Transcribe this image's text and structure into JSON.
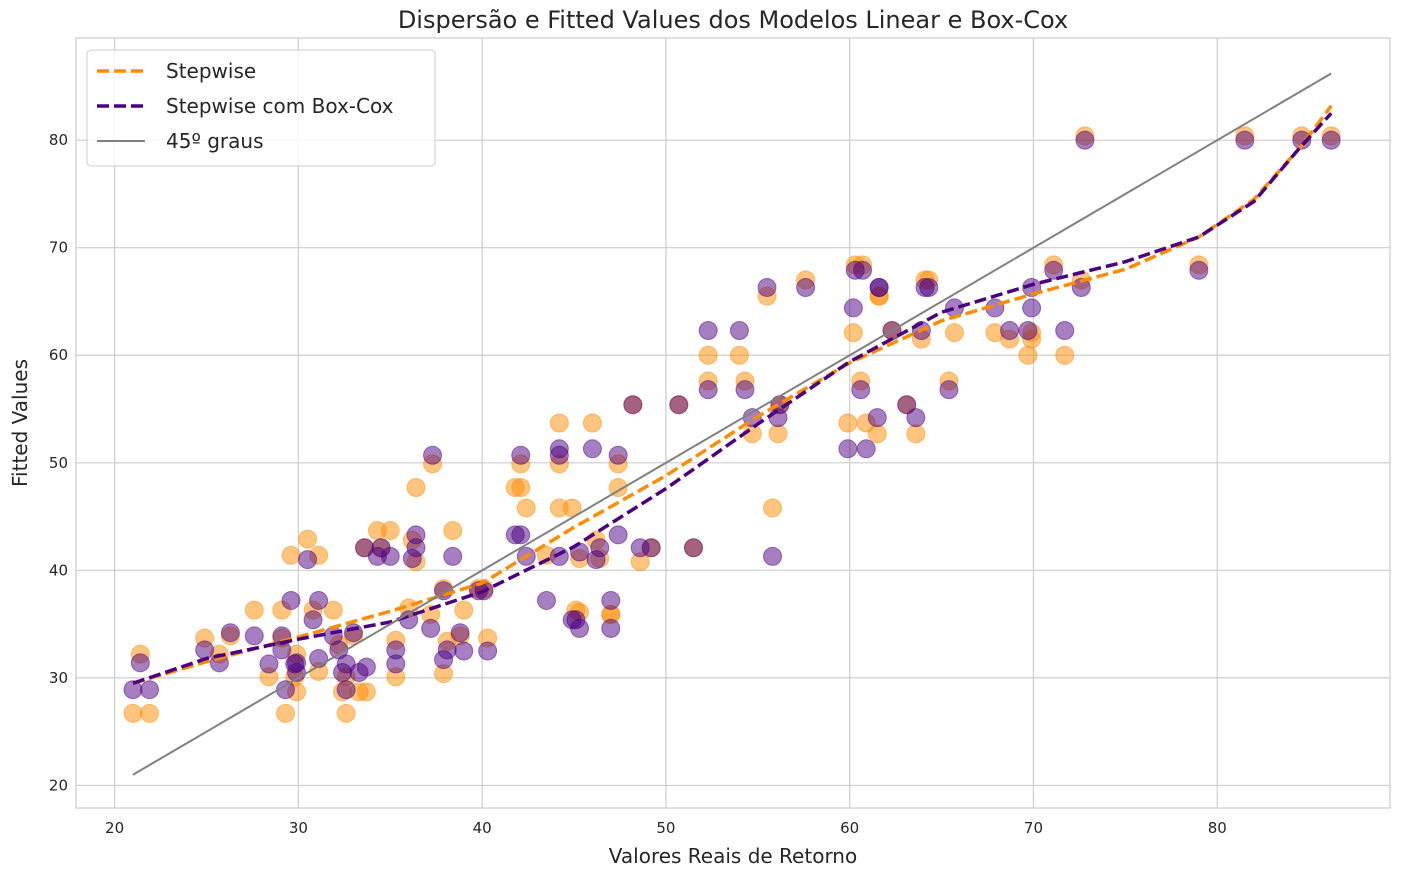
{
  "chart_data": {
    "type": "scatter",
    "title": "Dispersão e Fitted Values dos Modelos Linear e Box-Cox",
    "xlabel": "Valores Reais de Retorno",
    "ylabel": "Fitted Values",
    "xlim": [
      17.9,
      89.4
    ],
    "ylim": [
      17.9,
      89.5
    ],
    "xticks": [
      20,
      30,
      40,
      50,
      60,
      70,
      80
    ],
    "yticks": [
      20,
      30,
      40,
      50,
      60,
      70,
      80
    ],
    "grid": true,
    "legend_position": "top-left",
    "colors": {
      "stepwise": "#ff8c00",
      "boxcox": "#4b0082",
      "reference": "#808080"
    },
    "points": {
      "x": [
        21.0,
        21.4,
        21.9,
        24.9,
        25.7,
        26.3,
        27.6,
        28.4,
        29.1,
        29.1,
        29.3,
        29.6,
        29.8,
        29.9,
        29.9,
        30.5,
        30.8,
        31.1,
        31.1,
        31.9,
        32.2,
        32.4,
        32.6,
        32.6,
        33.0,
        33.3,
        33.6,
        33.7,
        34.3,
        34.5,
        35.0,
        35.3,
        35.3,
        36.0,
        36.2,
        36.4,
        36.4,
        37.2,
        37.3,
        37.9,
        37.9,
        38.1,
        38.4,
        38.8,
        39.0,
        39.8,
        40.1,
        40.3,
        41.8,
        42.1,
        42.1,
        42.4,
        43.5,
        44.2,
        44.2,
        44.2,
        44.9,
        45.1,
        45.3,
        45.3,
        46.0,
        46.2,
        46.4,
        47.0,
        47.0,
        47.4,
        47.4,
        48.2,
        48.6,
        49.2,
        50.7,
        51.5,
        52.3,
        52.3,
        54.0,
        54.3,
        54.7,
        55.5,
        55.8,
        56.1,
        56.2,
        57.6,
        59.9,
        60.2,
        60.3,
        60.6,
        60.7,
        60.9,
        61.5,
        61.6,
        61.6,
        62.3,
        63.1,
        63.6,
        63.9,
        64.1,
        64.3,
        65.4,
        65.7,
        67.9,
        68.7,
        69.7,
        69.9,
        69.9,
        71.1,
        71.7,
        72.6,
        72.8,
        79.0,
        81.5,
        84.6,
        86.2
      ],
      "stepwise": [
        26.7,
        32.2,
        26.7,
        33.7,
        32.2,
        33.9,
        36.3,
        30.1,
        36.3,
        33.7,
        26.7,
        41.4,
        30.1,
        28.7,
        32.2,
        42.9,
        36.3,
        41.4,
        30.6,
        36.3,
        33.1,
        28.7,
        30.1,
        26.7,
        33.9,
        28.7,
        42.1,
        28.7,
        43.7,
        42.1,
        43.7,
        30.1,
        33.5,
        36.5,
        42.8,
        47.7,
        40.8,
        35.9,
        49.9,
        30.4,
        38.3,
        33.4,
        43.7,
        33.9,
        36.3,
        38.3,
        38.3,
        33.7,
        47.7,
        47.7,
        49.9,
        45.8,
        41.4,
        53.7,
        49.9,
        45.8,
        45.8,
        36.3,
        41.1,
        36.1,
        53.7,
        42.8,
        41.1,
        35.9,
        35.9,
        49.9,
        47.7,
        55.4,
        40.8,
        42.1,
        55.4,
        42.1,
        60.0,
        57.6,
        60.0,
        57.6,
        52.7,
        65.5,
        45.8,
        52.7,
        55.4,
        67.0,
        53.7,
        62.1,
        68.4,
        57.6,
        68.4,
        53.7,
        52.7,
        65.5,
        65.5,
        62.3,
        55.4,
        52.7,
        61.5,
        67.0,
        67.0,
        57.6,
        62.1,
        62.1,
        61.5,
        60.0,
        61.5,
        62.1,
        68.4,
        60.0,
        67.0,
        80.4,
        68.4,
        80.4,
        80.4,
        80.4
      ],
      "boxcox": [
        28.9,
        31.4,
        28.9,
        32.6,
        31.4,
        34.2,
        33.9,
        31.3,
        33.9,
        32.6,
        28.9,
        37.2,
        31.3,
        30.5,
        31.4,
        41.0,
        35.4,
        37.2,
        31.8,
        33.9,
        32.6,
        30.5,
        31.3,
        28.9,
        34.2,
        30.5,
        42.1,
        31.0,
        41.3,
        42.1,
        41.3,
        31.3,
        32.6,
        35.4,
        41.1,
        43.3,
        42.1,
        34.6,
        50.7,
        31.7,
        38.1,
        32.6,
        41.3,
        34.2,
        32.5,
        38.1,
        38.1,
        32.5,
        43.3,
        43.3,
        50.7,
        41.3,
        37.2,
        51.3,
        50.7,
        41.3,
        35.4,
        35.4,
        41.7,
        34.6,
        51.3,
        41.0,
        42.1,
        37.2,
        34.6,
        50.7,
        43.3,
        55.4,
        42.1,
        42.1,
        55.4,
        42.1,
        62.3,
        56.8,
        62.3,
        56.8,
        54.2,
        66.3,
        41.3,
        54.2,
        55.4,
        66.3,
        51.3,
        64.4,
        67.9,
        56.8,
        67.9,
        51.3,
        54.2,
        66.3,
        66.3,
        62.3,
        55.4,
        54.2,
        62.3,
        66.3,
        66.3,
        56.8,
        64.4,
        64.4,
        62.3,
        62.3,
        64.4,
        66.3,
        67.9,
        62.3,
        66.3,
        80.0,
        67.9,
        80.0,
        80.0,
        80.0
      ]
    },
    "series": [
      {
        "name": "Stepwise",
        "style": "dashed",
        "x": [
          21,
          25,
          30,
          35,
          40,
          45,
          50,
          55,
          60,
          65,
          70,
          75,
          79,
          82,
          84.6,
          86.2
        ],
        "y": [
          29.5,
          31.5,
          33.8,
          36.2,
          38.8,
          44.0,
          48.8,
          54.3,
          59.3,
          63.2,
          65.7,
          68.0,
          71.0,
          74.5,
          79.5,
          83.2
        ]
      },
      {
        "name": "Stepwise com Box-Cox",
        "style": "dashed",
        "x": [
          21,
          25,
          30,
          35,
          40,
          45,
          50,
          55,
          60,
          65,
          70,
          75,
          79,
          82,
          84.6,
          86.2
        ],
        "y": [
          29.5,
          31.8,
          33.6,
          35.2,
          38.0,
          42.2,
          47.6,
          53.6,
          59.4,
          64.0,
          66.6,
          68.7,
          71.0,
          74.3,
          79.5,
          82.5
        ]
      },
      {
        "name": "45º graus",
        "style": "solid",
        "x": [
          21,
          86.2
        ],
        "y": [
          21,
          86.2
        ]
      }
    ]
  }
}
